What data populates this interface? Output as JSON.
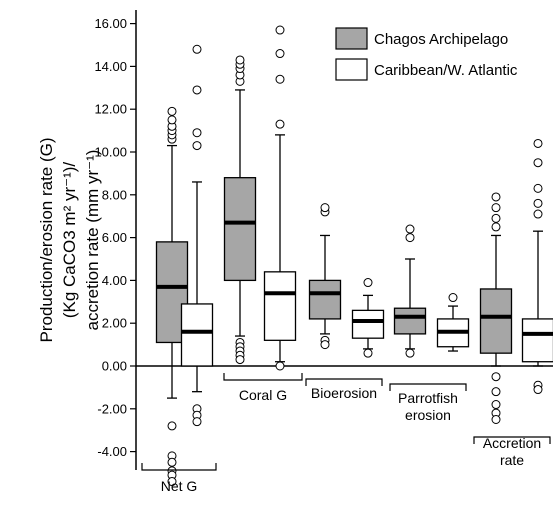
{
  "chart_data": {
    "type": "boxplot",
    "ylabel": [
      "Production/erosion rate (G)",
      "(Kg CaCO3 m² yr⁻¹)/",
      "accretion rate (mm yr⁻¹)"
    ],
    "ylim": [
      -5.6,
      16.6
    ],
    "yticks": [
      -4,
      -2,
      0,
      2,
      4,
      6,
      8,
      10,
      12,
      14,
      16
    ],
    "ytick_labels": [
      "-4.00",
      "-2.00",
      "0.00",
      "2.00",
      "4.00",
      "6.00",
      "8.00",
      "10.00",
      "12.00",
      "14.00",
      "16.00"
    ],
    "legend": [
      {
        "name": "Chagos Archipelago",
        "color": "#a6a6a6"
      },
      {
        "name": "Caribbean/W. Atlantic",
        "color": "#ffffff"
      }
    ],
    "groups": [
      {
        "label": "Net G",
        "label_lines": [
          "Net G"
        ]
      },
      {
        "label": "Coral G",
        "label_lines": [
          "Coral G"
        ]
      },
      {
        "label": "Bioerosion",
        "label_lines": [
          "Bioerosion"
        ]
      },
      {
        "label": "Parrotfish erosion",
        "label_lines": [
          "Parrotfish",
          "erosion"
        ]
      },
      {
        "label": "Accretion rate",
        "label_lines": [
          "Accretion",
          "rate"
        ]
      }
    ],
    "boxes": [
      {
        "group": "Net G",
        "series": "Chagos Archipelago",
        "min": -1.5,
        "q1": 1.1,
        "median": 3.7,
        "q3": 5.8,
        "max": 10.3,
        "outliers": [
          10.6,
          10.8,
          11.0,
          11.2,
          11.5,
          11.9,
          -2.8,
          -4.2,
          -4.5,
          -4.9,
          -5.1,
          -5.4
        ]
      },
      {
        "group": "Net G",
        "series": "Caribbean/W. Atlantic",
        "min": -1.2,
        "q1": 0.0,
        "median": 1.6,
        "q3": 2.9,
        "max": 8.6,
        "outliers": [
          10.3,
          10.9,
          12.9,
          14.8,
          -2.0,
          -2.3,
          -2.6
        ]
      },
      {
        "group": "Coral G",
        "series": "Chagos Archipelago",
        "min": 1.4,
        "q1": 4.0,
        "median": 6.7,
        "q3": 8.8,
        "max": 12.9,
        "outliers": [
          13.3,
          13.6,
          13.9,
          14.1,
          14.3,
          1.1,
          0.9,
          0.7,
          0.5,
          0.3
        ]
      },
      {
        "group": "Coral G",
        "series": "Caribbean/W. Atlantic",
        "min": 0.2,
        "q1": 1.2,
        "median": 3.4,
        "q3": 4.4,
        "max": 10.8,
        "outliers": [
          11.3,
          13.4,
          14.6,
          15.7,
          0.0
        ]
      },
      {
        "group": "Bioerosion",
        "series": "Chagos Archipelago",
        "min": 1.5,
        "q1": 2.2,
        "median": 3.4,
        "q3": 4.0,
        "max": 6.1,
        "outliers": [
          7.2,
          7.4,
          1.2,
          1.0
        ]
      },
      {
        "group": "Bioerosion",
        "series": "Caribbean/W. Atlantic",
        "min": 0.8,
        "q1": 1.3,
        "median": 2.1,
        "q3": 2.6,
        "max": 3.3,
        "outliers": [
          3.9,
          0.6
        ]
      },
      {
        "group": "Parrotfish erosion",
        "series": "Chagos Archipelago",
        "min": 0.8,
        "q1": 1.5,
        "median": 2.3,
        "q3": 2.7,
        "max": 5.0,
        "outliers": [
          6.0,
          6.4,
          0.6
        ]
      },
      {
        "group": "Parrotfish erosion",
        "series": "Caribbean/W. Atlantic",
        "min": 0.7,
        "q1": 0.9,
        "median": 1.6,
        "q3": 2.2,
        "max": 2.8,
        "outliers": [
          3.2
        ]
      },
      {
        "group": "Accretion rate",
        "series": "Chagos Archipelago",
        "min": 0.0,
        "q1": 0.6,
        "median": 2.3,
        "q3": 3.6,
        "max": 6.1,
        "outliers": [
          6.5,
          6.9,
          7.4,
          7.9,
          -0.5,
          -1.2,
          -1.8,
          -2.2,
          -2.5
        ]
      },
      {
        "group": "Accretion rate",
        "series": "Caribbean/W. Atlantic",
        "min": 0.0,
        "q1": 0.2,
        "median": 1.5,
        "q3": 2.2,
        "max": 6.3,
        "outliers": [
          7.1,
          7.6,
          8.3,
          9.5,
          10.4,
          -0.9,
          -1.1
        ]
      }
    ]
  }
}
